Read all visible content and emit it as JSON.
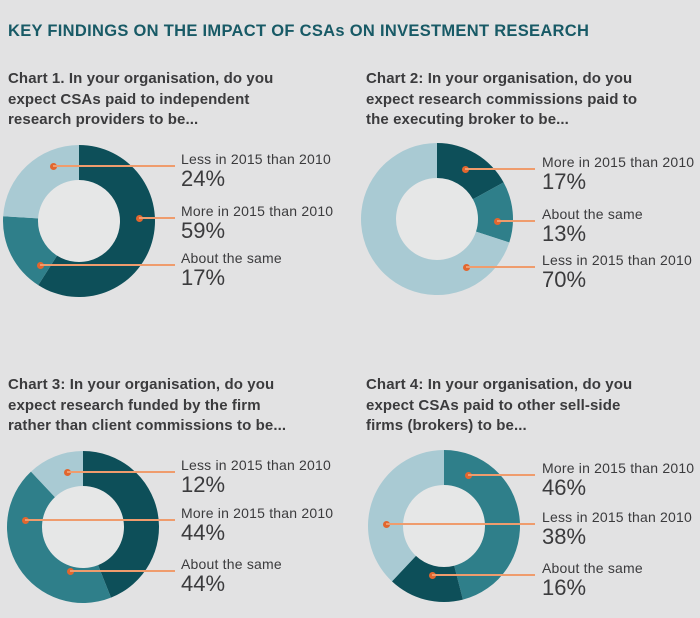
{
  "page_title": "KEY FINDINGS ON THE IMPACT OF CSAs ON INVESTMENT RESEARCH",
  "palette": {
    "bg": "#e2e2e3",
    "hole": "#e6e7e7",
    "dark": "#0d4f59",
    "medium": "#2f7f8a",
    "light": "#a9cad3",
    "line": "#ef9c6d",
    "dot": "#e2662e",
    "heading": "#185a66",
    "text": "#3b3b3d"
  },
  "chart_data": [
    {
      "type": "pie",
      "subtype": "donut",
      "title": "Chart 1. In your organisation, do you expect CSAs paid to independent research providers to be...",
      "title_lines": [
        "Chart 1. In your organisation, do you",
        "expect CSAs paid to independent",
        "research providers to be..."
      ],
      "slices": [
        {
          "label": "More in 2015 than 2010",
          "value": 59,
          "color": "dark"
        },
        {
          "label": "About the same",
          "value": 17,
          "color": "medium"
        },
        {
          "label": "Less in 2015 than 2010",
          "value": 24,
          "color": "light"
        }
      ],
      "callouts": [
        {
          "label": "Less in 2015 than 2010",
          "pct": "24%"
        },
        {
          "label": "More in 2015 than 2010",
          "pct": "59%"
        },
        {
          "label": "About the same",
          "pct": "17%"
        }
      ]
    },
    {
      "type": "pie",
      "subtype": "donut",
      "title": "Chart 2: In your organisation, do you expect research commissions paid to the executing broker to be...",
      "title_lines": [
        "Chart 2: In your organisation, do you",
        "expect research commissions paid to",
        "the executing broker to be..."
      ],
      "slices": [
        {
          "label": "More in 2015 than 2010",
          "value": 17,
          "color": "dark"
        },
        {
          "label": "About the same",
          "value": 13,
          "color": "medium"
        },
        {
          "label": "Less in 2015 than 2010",
          "value": 70,
          "color": "light"
        }
      ],
      "callouts": [
        {
          "label": "More in 2015 than 2010",
          "pct": "17%"
        },
        {
          "label": "About the same",
          "pct": "13%"
        },
        {
          "label": "Less in 2015 than 2010",
          "pct": "70%"
        }
      ]
    },
    {
      "type": "pie",
      "subtype": "donut",
      "title": "Chart 3: In your organisation, do you expect research funded by the firm rather than client commissions to be...",
      "title_lines": [
        "Chart 3: In your organisation, do you",
        "expect research funded by the firm",
        "rather than client commissions to be..."
      ],
      "slices": [
        {
          "label": "More in 2015 than 2010",
          "value": 44,
          "color": "dark"
        },
        {
          "label": "About the same",
          "value": 44,
          "color": "medium"
        },
        {
          "label": "Less in 2015 than 2010",
          "value": 12,
          "color": "light"
        }
      ],
      "callouts": [
        {
          "label": "Less in 2015 than 2010",
          "pct": "12%"
        },
        {
          "label": "More in 2015 than 2010",
          "pct": "44%"
        },
        {
          "label": "About the same",
          "pct": "44%"
        }
      ]
    },
    {
      "type": "pie",
      "subtype": "donut",
      "title": "Chart 4: In your organisation, do you expect CSAs paid to other sell-side firms (brokers) to be...",
      "title_lines": [
        "Chart 4: In your organisation, do you",
        "expect CSAs paid to other sell-side",
        "firms (brokers) to be..."
      ],
      "slices": [
        {
          "label": "More in 2015 than 2010",
          "value": 46,
          "color": "medium"
        },
        {
          "label": "About the same",
          "value": 16,
          "color": "dark"
        },
        {
          "label": "Less in 2015 than 2010",
          "value": 38,
          "color": "light"
        }
      ],
      "callouts": [
        {
          "label": "More in 2015 than 2010",
          "pct": "46%"
        },
        {
          "label": "Less in 2015 than 2010",
          "pct": "38%"
        },
        {
          "label": "About the same",
          "pct": "16%"
        }
      ]
    }
  ]
}
